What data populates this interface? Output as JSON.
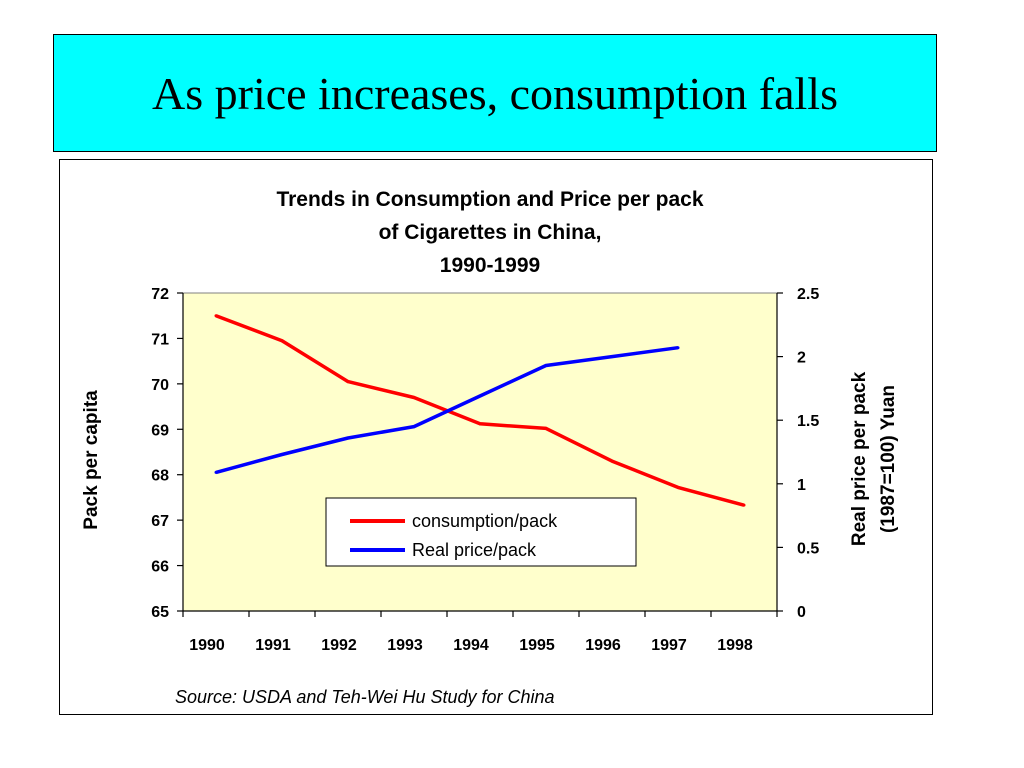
{
  "slide": {
    "title": "As price increases, consumption falls",
    "title_bg": "#00ffff"
  },
  "chart_data": {
    "type": "line",
    "title_lines": [
      "Trends in Consumption and Price per pack",
      "of Cigarettes in China,",
      "1990-1999"
    ],
    "x": [
      "1990",
      "1991",
      "1992",
      "1993",
      "1994",
      "1995",
      "1996",
      "1997",
      "1998"
    ],
    "ylabel_left": "Pack per capita",
    "ylabel_right_lines": [
      "Real price per pack",
      "(1987=100) Yuan"
    ],
    "ylim_left": [
      65,
      72
    ],
    "yticks_left": [
      "65",
      "66",
      "67",
      "68",
      "69",
      "70",
      "71",
      "72"
    ],
    "ylim_right": [
      0,
      2.5
    ],
    "yticks_right": [
      "0",
      "0.5",
      "1",
      "1.5",
      "2",
      "2.5"
    ],
    "plot_bg": "#ffffcc",
    "grid": false,
    "legend_position": "lower-center",
    "series": [
      {
        "name": "consumption/pack",
        "axis": "left",
        "color": "#ff0000",
        "values": [
          71.5,
          70.95,
          70.05,
          69.7,
          69.12,
          69.02,
          68.3,
          67.72,
          67.33
        ]
      },
      {
        "name": "Real price/pack",
        "axis": "right",
        "color": "#0000ff",
        "values": [
          1.09,
          1.23,
          1.36,
          1.45,
          1.69,
          1.93,
          2.0,
          2.07,
          null
        ]
      }
    ],
    "source": "Source: USDA and Teh-Wei Hu Study for China"
  }
}
